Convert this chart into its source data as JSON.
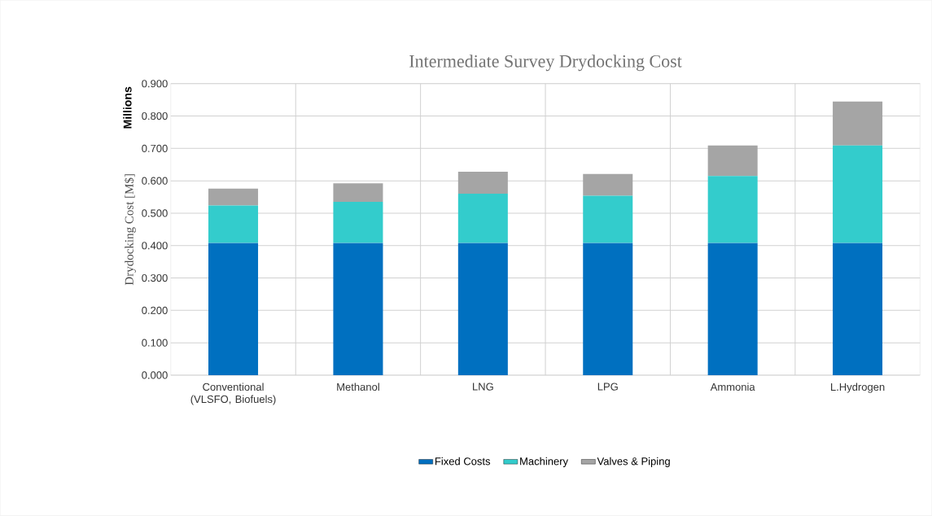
{
  "chart_data": {
    "type": "bar",
    "stacked": true,
    "title": "Intermediate Survey Drydocking Cost",
    "ylabel": "Drydocking Cost [M$]",
    "annotations": [
      "Millions"
    ],
    "categories": [
      "Conventional (VLSFO, Biofuels)",
      "Methanol",
      "LNG",
      "LPG",
      "Ammonia",
      "L.Hydrogen"
    ],
    "series": [
      {
        "name": "Fixed Costs",
        "color": "#0070c0",
        "values": [
          0.408,
          0.408,
          0.408,
          0.408,
          0.408,
          0.408
        ]
      },
      {
        "name": "Machinery",
        "color": "#33cccc",
        "values": [
          0.116,
          0.127,
          0.152,
          0.146,
          0.207,
          0.301
        ]
      },
      {
        "name": "Valves & Piping",
        "color": "#a5a5a5",
        "values": [
          0.052,
          0.057,
          0.068,
          0.067,
          0.094,
          0.136
        ]
      }
    ],
    "ylim": [
      0,
      0.9
    ],
    "yticks": [
      {
        "value": 0,
        "label": "0.000"
      },
      {
        "value": 0.1,
        "label": "0.100"
      },
      {
        "value": 0.2,
        "label": "0.200"
      },
      {
        "value": 0.3,
        "label": "0.300"
      },
      {
        "value": 0.4,
        "label": "0.400"
      },
      {
        "value": 0.5,
        "label": "0.500"
      },
      {
        "value": 0.6,
        "label": "0.600"
      },
      {
        "value": 0.7,
        "label": "0.700"
      },
      {
        "value": 0.8,
        "label": "0.800"
      },
      {
        "value": 0.9,
        "label": "0.900"
      }
    ],
    "grid": true,
    "legend": "bottom"
  }
}
